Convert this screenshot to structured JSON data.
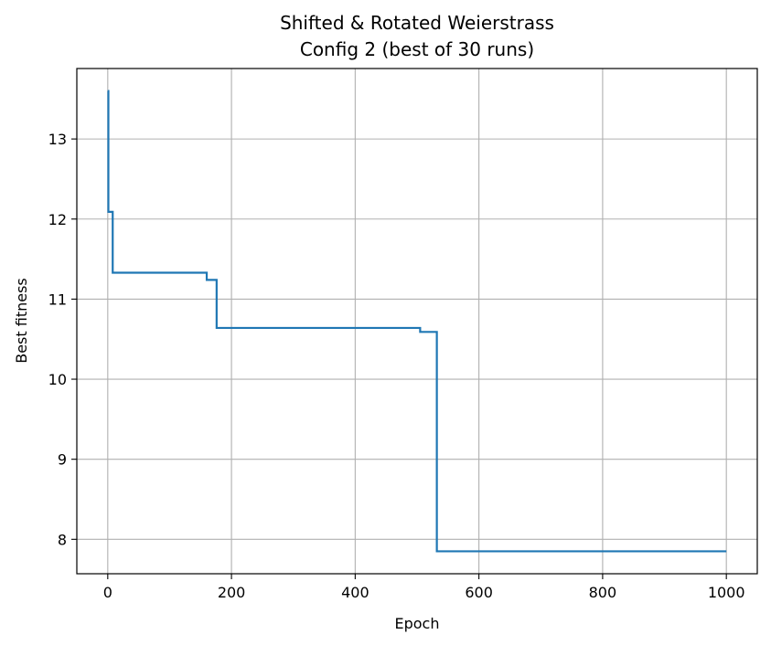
{
  "chart_data": {
    "type": "line",
    "title_lines": [
      "Shifted & Rotated Weierstrass",
      "Config 2  (best of 30 runs)"
    ],
    "xlabel": "Epoch",
    "ylabel": "Best fitness",
    "xlim": [
      -50,
      1050
    ],
    "ylim": [
      7.57,
      13.88
    ],
    "xticks": [
      0,
      200,
      400,
      600,
      800,
      1000
    ],
    "yticks": [
      8,
      9,
      10,
      11,
      12,
      13
    ],
    "grid": true,
    "series": [
      {
        "color": "#1f77b4",
        "x": [
          0,
          1,
          1,
          8,
          8,
          160,
          160,
          176,
          176,
          505,
          505,
          532,
          532,
          1000
        ],
        "y": [
          13.6,
          13.6,
          12.09,
          12.09,
          11.33,
          11.33,
          11.24,
          11.24,
          10.64,
          10.64,
          10.59,
          10.59,
          7.85,
          7.85
        ]
      }
    ]
  }
}
